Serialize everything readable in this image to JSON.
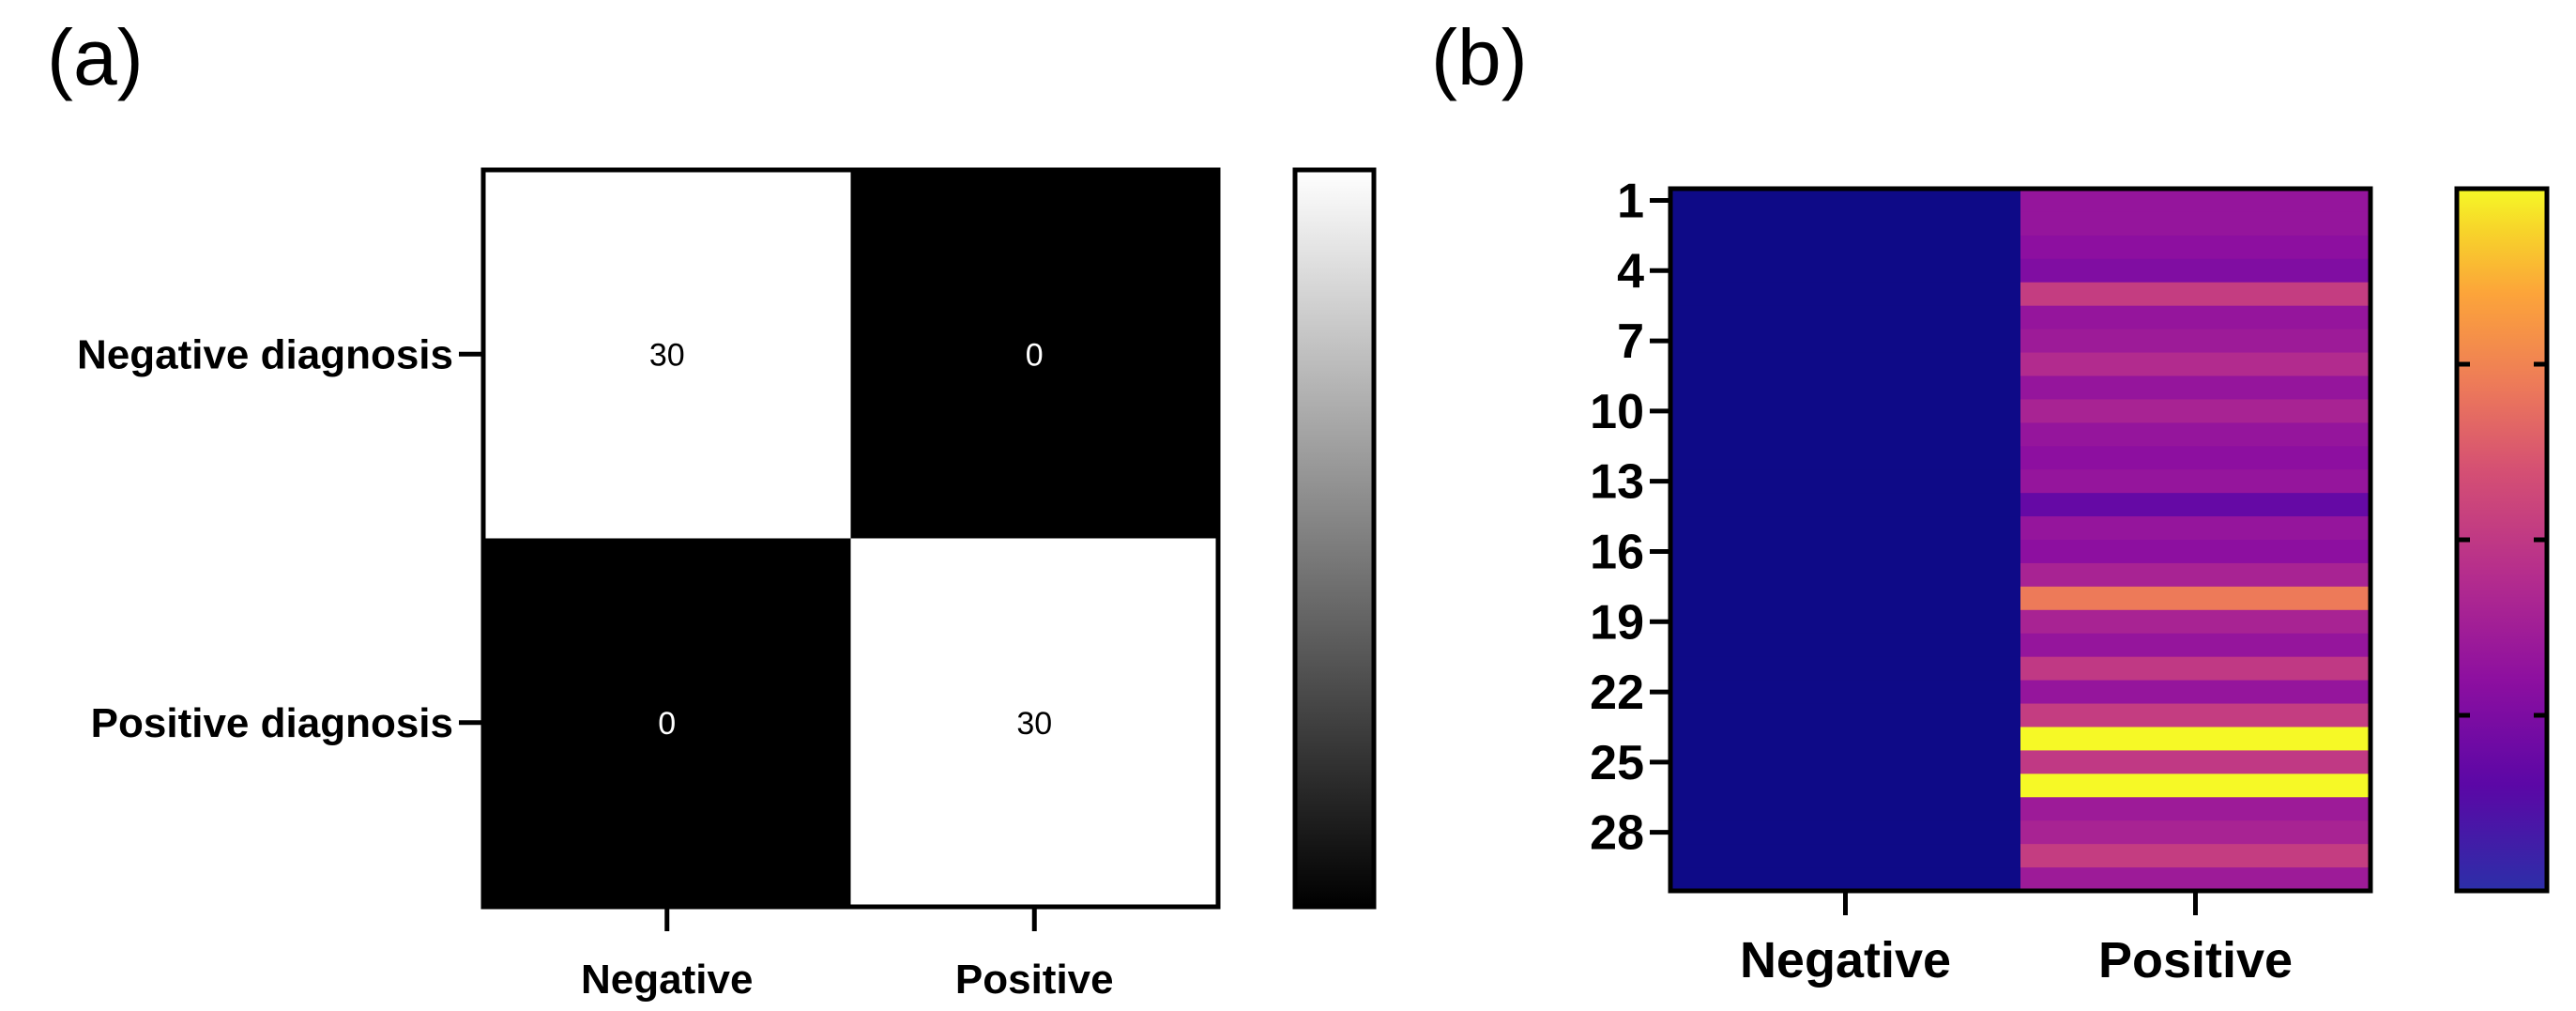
{
  "figure": {
    "panel_a_label": "(a)",
    "panel_b_label": "(b)"
  },
  "chart_data": [
    {
      "type": "heatmap",
      "panel": "(a)",
      "rows": [
        "Negative diagnosis",
        "Positive diagnosis"
      ],
      "columns": [
        "Negative",
        "Positive"
      ],
      "values": [
        [
          30,
          0
        ],
        [
          0,
          30
        ]
      ],
      "colorscale": "grayscale",
      "colors": {
        "low": "#000000",
        "high": "#ffffff"
      },
      "value_range": [
        0,
        30
      ],
      "colorbar": true,
      "colorbar_ticks": false
    },
    {
      "type": "heatmap",
      "panel": "(b)",
      "columns": [
        "Negative",
        "Positive"
      ],
      "row_count": 30,
      "y_tick_labels": [
        "1",
        "4",
        "7",
        "10",
        "13",
        "16",
        "19",
        "22",
        "25",
        "28"
      ],
      "values": {
        "Negative": [
          0,
          0,
          0,
          0,
          0,
          0,
          0,
          0,
          0,
          0,
          0,
          0,
          0,
          0,
          0,
          0,
          0,
          0,
          0,
          0,
          0,
          0,
          0,
          0,
          0,
          0,
          0,
          0,
          0,
          0
        ],
        "Positive": [
          0.33,
          0.33,
          0.3,
          0.26,
          0.52,
          0.33,
          0.36,
          0.44,
          0.33,
          0.4,
          0.33,
          0.3,
          0.33,
          0.18,
          0.33,
          0.3,
          0.4,
          0.72,
          0.4,
          0.33,
          0.5,
          0.33,
          0.52,
          1.0,
          0.5,
          1.0,
          0.36,
          0.4,
          0.52,
          0.36
        ]
      },
      "value_range": [
        0,
        1
      ],
      "colorscale": "plasma",
      "colors": {
        "low": "#0d0887",
        "mid": "#cc4778",
        "high": "#f0f921"
      },
      "colorbar": true,
      "colorbar_tick_count": 3
    }
  ]
}
